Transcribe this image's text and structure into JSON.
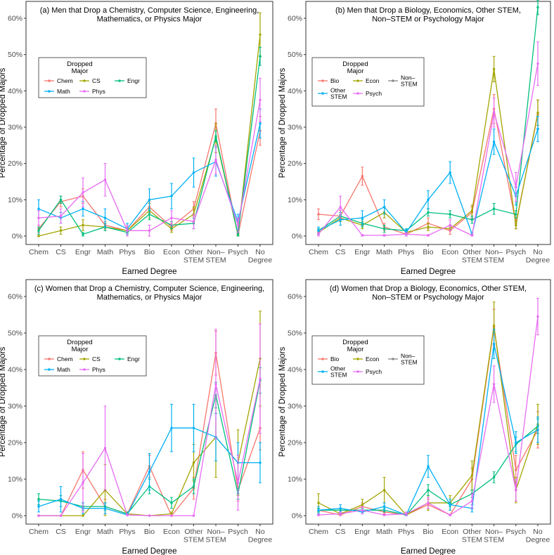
{
  "colors": {
    "Chem": "#F8766D",
    "CS": "#A3A500",
    "Engr": "#00BF7D",
    "Math": "#00B0F6",
    "Phys": "#E76BF3",
    "Bio": "#F8766D",
    "Econ": "#A3A500",
    "Non-STEM": "#00BF7D",
    "Other STEM": "#00B0F6",
    "Psych": "#E76BF3"
  },
  "chart_data": [
    {
      "type": "line",
      "title": [
        "(a) Men that Drop a Chemistry, Computer Science, Engineering,",
        "Mathematics, or Physics Major"
      ],
      "xlabel": "Earned Degree",
      "ylabel": "Percentage of Dropped Majors",
      "categories": [
        "Chem",
        "CS",
        "Engr",
        "Math",
        "Phys",
        "Bio",
        "Econ",
        "Other\nSTEM",
        "Non–\nSTEM",
        "Psych",
        "No\nDegree"
      ],
      "yticks": [
        "0%",
        "10%",
        "20%",
        "30%",
        "40%",
        "50%",
        "60%"
      ],
      "ylim": [
        0,
        60
      ],
      "legend": {
        "title": [
          "Dropped",
          "Major"
        ],
        "entries": [
          "Chem",
          "CS",
          "Engr",
          "Math",
          "Phys"
        ]
      },
      "series": [
        {
          "name": "Chem",
          "values": [
            2,
            9.5,
            11,
            3,
            1.5,
            8,
            2.5,
            7.5,
            31,
            0.2,
            29
          ],
          "err": [
            1,
            1.5,
            2,
            1,
            1,
            1.5,
            1,
            2,
            4,
            0.5,
            4
          ]
        },
        {
          "name": "CS",
          "values": [
            0,
            1.5,
            3,
            2.5,
            1.5,
            7,
            2,
            6,
            27,
            0.3,
            55.5
          ],
          "err": [
            0,
            1,
            1.5,
            1,
            1,
            2,
            1,
            2,
            4,
            0.5,
            6
          ]
        },
        {
          "name": "Engr",
          "values": [
            1.5,
            10,
            0.5,
            2.5,
            1,
            6,
            3,
            3.5,
            27.5,
            0.5,
            49.5
          ],
          "err": [
            1,
            1,
            0.5,
            1,
            1,
            1.5,
            1,
            1.5,
            1.5,
            0.5,
            2.5
          ]
        },
        {
          "name": "Math",
          "values": [
            7.5,
            5,
            7.5,
            5,
            2,
            10,
            11,
            17.5,
            20.5,
            4,
            31
          ],
          "err": [
            2.5,
            1.5,
            2,
            2.5,
            1.5,
            3,
            3.5,
            4,
            4,
            2,
            4
          ]
        },
        {
          "name": "Phys",
          "values": [
            5,
            5.5,
            12,
            15.5,
            1.5,
            1.5,
            5,
            4,
            21,
            3,
            37.5
          ],
          "err": [
            2,
            2,
            4,
            4.5,
            1.5,
            1.5,
            2,
            2,
            4,
            2,
            6
          ]
        }
      ]
    },
    {
      "type": "line",
      "title": [
        "(b) Men that Drop a Biology, Economics, Other STEM,",
        "Non–STEM or Psychology Major"
      ],
      "xlabel": "Earned Degree",
      "ylabel": "Percentage of Dropped Majors",
      "categories": [
        "Chem",
        "CS",
        "Engr",
        "Math",
        "Phys",
        "Bio",
        "Econ",
        "Other\nSTEM",
        "Non–\nSTEM",
        "Psych",
        "No\nDegree"
      ],
      "yticks": [
        "0%",
        "10%",
        "20%",
        "30%",
        "40%",
        "50%",
        "60%"
      ],
      "ylim": [
        0,
        60
      ],
      "legend": {
        "title": [
          "Dropped",
          "Major"
        ],
        "entries": [
          "Bio",
          "Econ",
          "Non–\nSTEM",
          "Other\nSTEM",
          "Psych"
        ]
      },
      "series": [
        {
          "name": "Bio",
          "values": [
            6,
            5.5,
            16.5,
            2.5,
            0.5,
            3.5,
            1.5,
            6.5,
            35,
            3.5,
            33.5
          ],
          "err": [
            1.5,
            1.5,
            2.5,
            1,
            0.5,
            1.5,
            1,
            1.5,
            4,
            1.5,
            4
          ]
        },
        {
          "name": "Econ",
          "values": [
            1,
            5,
            3,
            6.5,
            1,
            2.5,
            2,
            7,
            46,
            3,
            34
          ],
          "err": [
            0.5,
            1,
            1,
            1.5,
            0.5,
            1,
            0.5,
            1.5,
            3.5,
            1,
            3.5
          ]
        },
        {
          "name": "Non–STEM",
          "values": [
            1.5,
            5.5,
            3.5,
            2,
            1.5,
            6.5,
            6,
            4.5,
            7.5,
            6,
            63
          ],
          "err": [
            0.5,
            1,
            1,
            1,
            0.5,
            1,
            1,
            1,
            1.5,
            1,
            2
          ]
        },
        {
          "name": "Other STEM",
          "values": [
            1.5,
            4.5,
            5,
            8,
            1,
            10,
            17.5,
            0.5,
            26,
            11,
            29.5
          ],
          "err": [
            1,
            1.5,
            2,
            2,
            1,
            2.5,
            3,
            0.5,
            3.5,
            2.5,
            3.5
          ]
        },
        {
          "name": "Psych",
          "values": [
            0.5,
            8,
            0.2,
            0.2,
            0.5,
            0.2,
            3,
            0.2,
            34,
            13.5,
            47.5
          ],
          "err": [
            0.5,
            3,
            0.2,
            0.2,
            0.5,
            0.2,
            1.5,
            0.2,
            4,
            4,
            6
          ]
        }
      ]
    },
    {
      "type": "line",
      "title": [
        "(c) Women that Drop a Chemistry, Computer Science, Engineering,",
        "Mathematics, or Physics Major"
      ],
      "xlabel": "Earned Degree",
      "ylabel": "Percentage of Dropped Majors",
      "categories": [
        "Chem",
        "CS",
        "Engr",
        "Math",
        "Phys",
        "Bio",
        "Econ",
        "Other\nSTEM",
        "Non–\nSTEM",
        "Psych",
        "No\nDegree"
      ],
      "yticks": [
        "0%",
        "10%",
        "20%",
        "30%",
        "40%",
        "50%",
        "60%"
      ],
      "ylim": [
        0,
        60
      ],
      "legend": {
        "title": [
          "Dropped",
          "Major"
        ],
        "entries": [
          "Chem",
          "CS",
          "Engr",
          "Math",
          "Phys"
        ]
      },
      "series": [
        {
          "name": "Chem",
          "values": [
            0,
            0,
            12.5,
            2.5,
            0.5,
            13.5,
            0,
            7.5,
            44.5,
            7,
            24
          ],
          "err": [
            0,
            0,
            5,
            2,
            0.5,
            3,
            0,
            3,
            6,
            3,
            6
          ]
        },
        {
          "name": "CS",
          "values": [
            0,
            0,
            0,
            7,
            0.5,
            0,
            0.5,
            14.5,
            21.5,
            14.5,
            43
          ],
          "err": [
            0,
            0,
            0,
            7,
            0.5,
            0,
            0.5,
            5,
            11,
            9,
            13
          ]
        },
        {
          "name": "Engr",
          "values": [
            4.5,
            4,
            2.5,
            2.5,
            0.5,
            8,
            3.5,
            8,
            33,
            6,
            37
          ],
          "err": [
            1.5,
            1.5,
            1,
            1,
            0.5,
            2,
            1.5,
            2,
            3.5,
            1.5,
            3.5
          ]
        },
        {
          "name": "Math",
          "values": [
            2.5,
            4.5,
            2,
            2,
            0.2,
            12,
            24,
            24,
            21.5,
            14.5,
            14.5
          ],
          "err": [
            1.5,
            3.5,
            1.5,
            1.5,
            0.2,
            5,
            6.5,
            6.5,
            6.5,
            5.5,
            5.5
          ]
        },
        {
          "name": "Phys",
          "values": [
            0,
            0,
            9,
            18.5,
            0.2,
            0,
            0,
            0,
            36,
            9,
            37.5
          ],
          "err": [
            0,
            0,
            8,
            11.5,
            0.2,
            0,
            0,
            0,
            15,
            7.5,
            15
          ]
        }
      ]
    },
    {
      "type": "line",
      "title": [
        "(d) Women that Drop a Biology, Economics, Other STEM,",
        "Non–STEM or Psychology Major"
      ],
      "xlabel": "Earned Degree",
      "ylabel": "Percentage of Dropped Majors",
      "categories": [
        "Chem",
        "CS",
        "Engr",
        "Math",
        "Phys",
        "Bio",
        "Econ",
        "Other\nSTEM",
        "Non–\nSTEM",
        "Psych",
        "No\nDegree"
      ],
      "yticks": [
        "0%",
        "10%",
        "20%",
        "30%",
        "40%",
        "50%",
        "60%"
      ],
      "ylim": [
        0,
        60
      ],
      "legend": {
        "title": [
          "Dropped",
          "Major"
        ],
        "entries": [
          "Bio",
          "Econ",
          "Non–\nSTEM",
          "Other\nSTEM",
          "Psych"
        ]
      },
      "series": [
        {
          "name": "Bio",
          "values": [
            1.5,
            0.2,
            2.5,
            1,
            0.2,
            3,
            0.2,
            10,
            51.5,
            12.5,
            23.5
          ],
          "err": [
            1,
            0.2,
            1,
            0.5,
            0.2,
            1.5,
            0.2,
            3,
            5,
            4,
            5
          ]
        },
        {
          "name": "Econ",
          "values": [
            3.5,
            0.5,
            3,
            7,
            0.2,
            3.5,
            3.5,
            11,
            52,
            7,
            25
          ],
          "err": [
            2.5,
            0.5,
            1.5,
            3.5,
            0.2,
            2,
            2,
            4,
            6.5,
            3.5,
            5.5
          ]
        },
        {
          "name": "Non–STEM",
          "values": [
            1.5,
            1.5,
            1.5,
            1.5,
            0.2,
            7,
            3,
            6,
            10.5,
            19.5,
            24.5
          ],
          "err": [
            0.5,
            0.5,
            0.5,
            0.5,
            0.2,
            1.5,
            0.5,
            1,
            1.5,
            2,
            2
          ]
        },
        {
          "name": "Other STEM",
          "values": [
            1.5,
            2,
            1,
            2.5,
            0.2,
            13.5,
            3,
            2,
            47,
            20,
            23.5
          ],
          "err": [
            1,
            1,
            0.5,
            1,
            0.2,
            3,
            1.5,
            1,
            4,
            3,
            3.5
          ]
        },
        {
          "name": "Psych",
          "values": [
            0.2,
            0.5,
            1.5,
            0.2,
            0.5,
            3.5,
            0.2,
            4,
            36,
            7,
            54.5
          ],
          "err": [
            0.2,
            0.5,
            1,
            0.2,
            0.5,
            1.5,
            0.2,
            2,
            5,
            3,
            5
          ]
        }
      ]
    }
  ]
}
